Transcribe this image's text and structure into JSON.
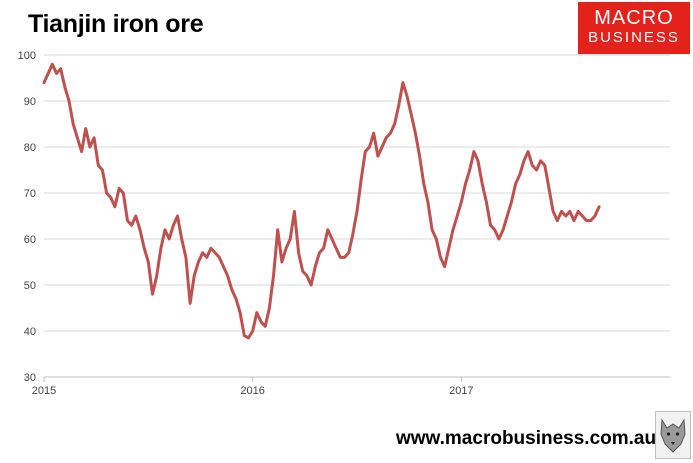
{
  "header": {
    "title": "Tianjin iron ore"
  },
  "logo": {
    "line1": "MACRO",
    "line2": "BUSINESS"
  },
  "footer": {
    "url": "www.macrobusiness.com.au"
  },
  "colors": {
    "series": "#c0504d",
    "logo_bg": "#e5211c",
    "grid": "#d9d9d9"
  },
  "chart_data": {
    "type": "line",
    "title": "Tianjin iron ore",
    "xlabel": "",
    "ylabel": "",
    "xlim": [
      2015.0,
      2018.0
    ],
    "ylim": [
      30,
      100
    ],
    "yticks": [
      30,
      40,
      50,
      60,
      70,
      80,
      90,
      100
    ],
    "xticks": [
      {
        "value": 2015.0,
        "label": "2015"
      },
      {
        "value": 2016.0,
        "label": "2016"
      },
      {
        "value": 2017.0,
        "label": "2017"
      }
    ],
    "grid": "horizontal",
    "series": [
      {
        "name": "Tianjin iron ore",
        "points": [
          [
            2015.0,
            94
          ],
          [
            2015.02,
            96
          ],
          [
            2015.04,
            98
          ],
          [
            2015.06,
            96
          ],
          [
            2015.08,
            97
          ],
          [
            2015.1,
            93
          ],
          [
            2015.12,
            90
          ],
          [
            2015.14,
            85
          ],
          [
            2015.16,
            82
          ],
          [
            2015.18,
            79
          ],
          [
            2015.2,
            84
          ],
          [
            2015.22,
            80
          ],
          [
            2015.24,
            82
          ],
          [
            2015.26,
            76
          ],
          [
            2015.28,
            75
          ],
          [
            2015.3,
            70
          ],
          [
            2015.32,
            69
          ],
          [
            2015.34,
            67
          ],
          [
            2015.36,
            71
          ],
          [
            2015.38,
            70
          ],
          [
            2015.4,
            64
          ],
          [
            2015.42,
            63
          ],
          [
            2015.44,
            65
          ],
          [
            2015.46,
            62
          ],
          [
            2015.48,
            58
          ],
          [
            2015.5,
            55
          ],
          [
            2015.52,
            48
          ],
          [
            2015.54,
            52
          ],
          [
            2015.56,
            58
          ],
          [
            2015.58,
            62
          ],
          [
            2015.6,
            60
          ],
          [
            2015.62,
            63
          ],
          [
            2015.64,
            65
          ],
          [
            2015.66,
            60
          ],
          [
            2015.68,
            56
          ],
          [
            2015.7,
            46
          ],
          [
            2015.72,
            52
          ],
          [
            2015.74,
            55
          ],
          [
            2015.76,
            57
          ],
          [
            2015.78,
            56
          ],
          [
            2015.8,
            58
          ],
          [
            2015.82,
            57
          ],
          [
            2015.84,
            56
          ],
          [
            2015.86,
            54
          ],
          [
            2015.88,
            52
          ],
          [
            2015.9,
            49
          ],
          [
            2015.92,
            47
          ],
          [
            2015.94,
            44
          ],
          [
            2015.96,
            39
          ],
          [
            2015.98,
            38.5
          ],
          [
            2016.0,
            40
          ],
          [
            2016.02,
            44
          ],
          [
            2016.04,
            42
          ],
          [
            2016.06,
            41
          ],
          [
            2016.08,
            45
          ],
          [
            2016.1,
            52
          ],
          [
            2016.12,
            62
          ],
          [
            2016.14,
            55
          ],
          [
            2016.16,
            58
          ],
          [
            2016.18,
            60
          ],
          [
            2016.2,
            66
          ],
          [
            2016.22,
            57
          ],
          [
            2016.24,
            53
          ],
          [
            2016.26,
            52
          ],
          [
            2016.28,
            50
          ],
          [
            2016.3,
            54
          ],
          [
            2016.32,
            57
          ],
          [
            2016.34,
            58
          ],
          [
            2016.36,
            62
          ],
          [
            2016.38,
            60
          ],
          [
            2016.4,
            58
          ],
          [
            2016.42,
            56
          ],
          [
            2016.44,
            56
          ],
          [
            2016.46,
            57
          ],
          [
            2016.48,
            61
          ],
          [
            2016.5,
            66
          ],
          [
            2016.52,
            73
          ],
          [
            2016.54,
            79
          ],
          [
            2016.56,
            80
          ],
          [
            2016.58,
            83
          ],
          [
            2016.6,
            78
          ],
          [
            2016.62,
            80
          ],
          [
            2016.64,
            82
          ],
          [
            2016.66,
            83
          ],
          [
            2016.68,
            85
          ],
          [
            2016.7,
            89
          ],
          [
            2016.72,
            94
          ],
          [
            2016.74,
            91
          ],
          [
            2016.76,
            87
          ],
          [
            2016.78,
            83
          ],
          [
            2016.8,
            78
          ],
          [
            2016.82,
            72
          ],
          [
            2016.84,
            68
          ],
          [
            2016.86,
            62
          ],
          [
            2016.88,
            60
          ],
          [
            2016.9,
            56
          ],
          [
            2016.92,
            54
          ],
          [
            2016.94,
            58
          ],
          [
            2016.96,
            62
          ],
          [
            2016.98,
            65
          ],
          [
            2017.0,
            68
          ],
          [
            2017.02,
            72
          ],
          [
            2017.04,
            75
          ],
          [
            2017.06,
            79
          ],
          [
            2017.08,
            77
          ],
          [
            2017.1,
            72
          ],
          [
            2017.12,
            68
          ],
          [
            2017.14,
            63
          ],
          [
            2017.16,
            62
          ],
          [
            2017.18,
            60
          ],
          [
            2017.2,
            62
          ],
          [
            2017.22,
            65
          ],
          [
            2017.24,
            68
          ],
          [
            2017.26,
            72
          ],
          [
            2017.28,
            74
          ],
          [
            2017.3,
            77
          ],
          [
            2017.32,
            79
          ],
          [
            2017.34,
            76
          ],
          [
            2017.36,
            75
          ],
          [
            2017.38,
            77
          ],
          [
            2017.4,
            76
          ],
          [
            2017.42,
            71
          ],
          [
            2017.44,
            66
          ],
          [
            2017.46,
            64
          ],
          [
            2017.48,
            66
          ],
          [
            2017.5,
            65
          ],
          [
            2017.52,
            66
          ],
          [
            2017.54,
            64
          ],
          [
            2017.56,
            66
          ],
          [
            2017.58,
            65
          ],
          [
            2017.6,
            64
          ],
          [
            2017.62,
            64
          ],
          [
            2017.64,
            65
          ],
          [
            2017.66,
            67
          ]
        ]
      }
    ]
  }
}
